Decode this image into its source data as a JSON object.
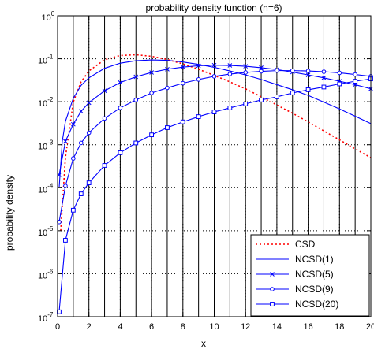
{
  "chart_data": {
    "type": "line",
    "title": "probability density function (n=6)",
    "xlabel": "x",
    "ylabel": "probability density",
    "xlim": [
      0,
      20
    ],
    "ylim": [
      1e-07,
      1
    ],
    "yscale": "log",
    "x_ticks": [
      "0",
      "2",
      "4",
      "6",
      "8",
      "10",
      "12",
      "14",
      "16",
      "18",
      "20"
    ],
    "y_ticks": [
      {
        "base": "10",
        "exp": "-7"
      },
      {
        "base": "10",
        "exp": "-6"
      },
      {
        "base": "10",
        "exp": "-5"
      },
      {
        "base": "10",
        "exp": "-4"
      },
      {
        "base": "10",
        "exp": "-3"
      },
      {
        "base": "10",
        "exp": "-2"
      },
      {
        "base": "10",
        "exp": "-1"
      },
      {
        "base": "10",
        "exp": "0"
      }
    ],
    "grid": true,
    "legend_position": "bottom-right",
    "series": [
      {
        "name": "CSD",
        "color": "#ff0000",
        "style": "dotted",
        "marker": "none",
        "x": [
          0.2,
          0.5,
          1,
          1.5,
          2,
          3,
          4,
          5,
          6,
          7,
          8,
          9,
          10,
          11,
          12,
          13,
          14,
          15,
          16,
          17,
          18,
          19,
          20
        ],
        "y": [
          1e-05,
          0.0005,
          0.0098,
          0.029,
          0.052,
          0.095,
          0.119,
          0.124,
          0.114,
          0.096,
          0.076,
          0.057,
          0.041,
          0.029,
          0.02,
          0.013,
          0.0084,
          0.0054,
          0.0034,
          0.0021,
          0.0013,
          0.0008,
          0.0005
        ]
      },
      {
        "name": "NCSD(1)",
        "color": "#0000ff",
        "style": "solid",
        "marker": "none",
        "x": [
          0.1,
          0.3,
          0.5,
          1,
          1.5,
          2,
          3,
          4,
          5,
          6,
          7,
          8,
          9,
          10,
          11,
          12,
          13,
          14,
          15,
          16,
          17,
          18,
          19,
          20
        ],
        "y": [
          0.0001,
          0.0012,
          0.0035,
          0.012,
          0.024,
          0.036,
          0.06,
          0.079,
          0.09,
          0.094,
          0.092,
          0.084,
          0.074,
          0.063,
          0.052,
          0.042,
          0.033,
          0.025,
          0.019,
          0.014,
          0.0098,
          0.0068,
          0.0046,
          0.0031
        ]
      },
      {
        "name": "NCSD(5)",
        "color": "#0000ff",
        "style": "solid",
        "marker": "x",
        "x": [
          0.1,
          0.5,
          1,
          1.5,
          2,
          3,
          4,
          5,
          6,
          7,
          8,
          9,
          10,
          11,
          12,
          13,
          14,
          15,
          16,
          17,
          18,
          19,
          20
        ],
        "y": [
          0.0002,
          0.0012,
          0.003,
          0.006,
          0.0095,
          0.018,
          0.028,
          0.038,
          0.048,
          0.057,
          0.064,
          0.069,
          0.071,
          0.07,
          0.067,
          0.062,
          0.056,
          0.049,
          0.042,
          0.036,
          0.03,
          0.025,
          0.02
        ]
      },
      {
        "name": "NCSD(9)",
        "color": "#0000ff",
        "style": "solid",
        "marker": "o",
        "x": [
          0.1,
          0.5,
          1,
          1.5,
          2,
          3,
          4,
          5,
          6,
          7,
          8,
          9,
          10,
          11,
          12,
          13,
          14,
          15,
          16,
          17,
          18,
          19,
          20
        ],
        "y": [
          1.6e-05,
          0.00011,
          0.00048,
          0.0011,
          0.0019,
          0.0041,
          0.0072,
          0.011,
          0.016,
          0.021,
          0.027,
          0.033,
          0.039,
          0.044,
          0.048,
          0.051,
          0.053,
          0.053,
          0.052,
          0.05,
          0.047,
          0.043,
          0.039
        ]
      },
      {
        "name": "NCSD(20)",
        "color": "#0000ff",
        "style": "solid",
        "marker": "s",
        "x": [
          0.1,
          0.5,
          1,
          1.5,
          2,
          3,
          4,
          5,
          6,
          7,
          8,
          9,
          10,
          11,
          12,
          13,
          14,
          15,
          16,
          17,
          18,
          19,
          20
        ],
        "y": [
          1.3e-07,
          6e-06,
          3e-05,
          7.2e-05,
          0.00013,
          0.00033,
          0.00065,
          0.0011,
          0.0017,
          0.0025,
          0.0034,
          0.0045,
          0.0058,
          0.0072,
          0.0089,
          0.011,
          0.013,
          0.016,
          0.019,
          0.022,
          0.026,
          0.03,
          0.034
        ]
      }
    ]
  }
}
